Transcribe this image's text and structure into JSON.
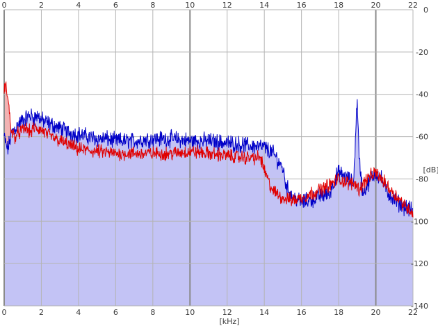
{
  "chart_data": {
    "type": "area",
    "title": "",
    "xlabel": "[kHz]",
    "ylabel": "[dB]",
    "xlim": [
      0,
      22
    ],
    "ylim": [
      -140,
      0
    ],
    "x_ticks": [
      "0",
      "2",
      "4",
      "6",
      "8",
      "10",
      "12",
      "14",
      "16",
      "18",
      "20",
      "22"
    ],
    "y_ticks": [
      "0",
      "-20",
      "-40",
      "-60",
      "-80",
      "-100",
      "-120",
      "-140"
    ],
    "grid": true,
    "legend": "none",
    "colors": {
      "grid": "#b4b4b4",
      "grid_major": "#8a8a8a",
      "fill": "#c3c3f5",
      "fill_red_excess": "#f2b3b3"
    },
    "series": [
      {
        "color": "#0000c8",
        "x": [
          0,
          0.1,
          0.2,
          0.4,
          0.6,
          0.8,
          1.0,
          1.2,
          1.4,
          1.6,
          1.8,
          2.0,
          2.2,
          2.5,
          3.0,
          3.5,
          4.0,
          4.5,
          5.0,
          5.5,
          6.0,
          7.0,
          8.0,
          9.0,
          10.0,
          11.0,
          12.0,
          13.0,
          14.0,
          14.5,
          15.0,
          15.2,
          15.5,
          16.0,
          16.5,
          17.0,
          17.5,
          17.8,
          18.0,
          18.5,
          18.8,
          18.9,
          19.0,
          19.1,
          19.3,
          19.6,
          20.0,
          20.3,
          20.6,
          21.0,
          21.5,
          22.0
        ],
        "y": [
          -60,
          -64,
          -66,
          -58,
          -56,
          -54,
          -52,
          -51,
          -50,
          -51,
          -50,
          -52,
          -53,
          -54,
          -56,
          -58,
          -59,
          -60,
          -61,
          -61,
          -62,
          -62,
          -61,
          -61,
          -62,
          -62,
          -63,
          -64,
          -65,
          -68,
          -75,
          -84,
          -88,
          -91,
          -90,
          -88,
          -87,
          -80,
          -77,
          -80,
          -82,
          -62,
          -41,
          -70,
          -87,
          -82,
          -77,
          -80,
          -86,
          -90,
          -93,
          -95
        ]
      },
      {
        "color": "#e00000",
        "x": [
          0,
          0.1,
          0.2,
          0.3,
          0.4,
          0.6,
          0.8,
          1.0,
          1.2,
          1.4,
          1.6,
          2.0,
          2.5,
          3.0,
          3.5,
          4.0,
          5.0,
          6.0,
          7.0,
          8.0,
          9.0,
          10.0,
          11.0,
          12.0,
          13.0,
          13.8,
          14.0,
          14.3,
          14.5,
          15.0,
          15.5,
          16.0,
          16.5,
          17.0,
          17.5,
          18.0,
          18.5,
          18.9,
          19.1,
          19.5,
          20.0,
          20.5,
          21.0,
          21.5,
          22.0
        ],
        "y": [
          -38,
          -36,
          -42,
          -50,
          -58,
          -60,
          -58,
          -57,
          -56,
          -58,
          -56,
          -57,
          -60,
          -62,
          -64,
          -66,
          -67,
          -68,
          -68,
          -68,
          -68,
          -67,
          -68,
          -69,
          -70,
          -70,
          -76,
          -83,
          -86,
          -89,
          -90,
          -89,
          -87,
          -85,
          -83,
          -80,
          -82,
          -82,
          -85,
          -80,
          -77,
          -82,
          -87,
          -92,
          -96
        ]
      }
    ]
  }
}
